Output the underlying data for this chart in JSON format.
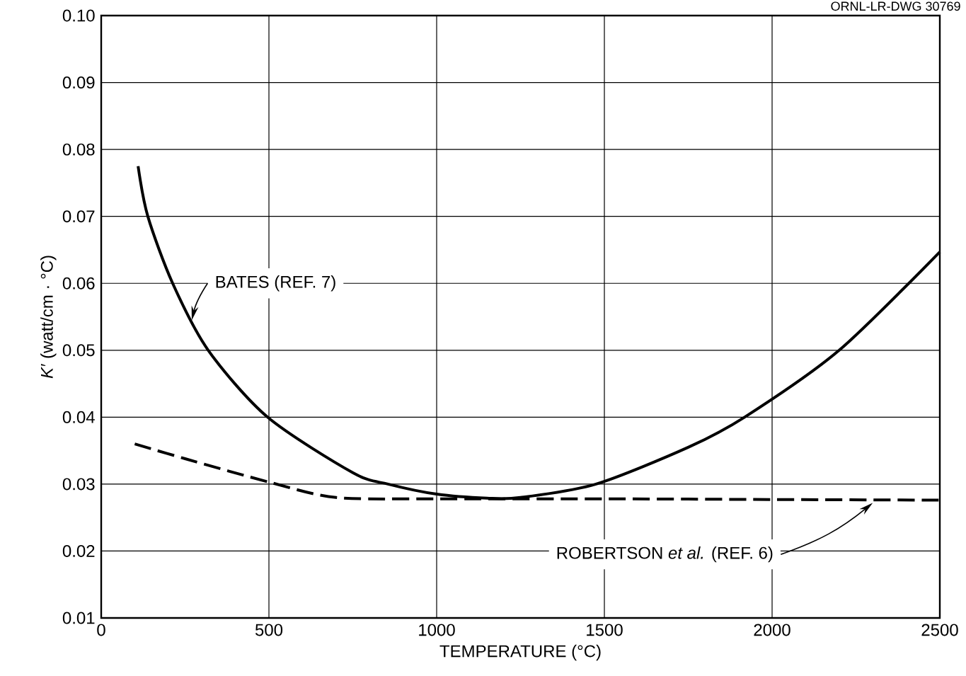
{
  "chart_data": {
    "type": "line",
    "xlabel": "TEMPERATURE (°C)",
    "ylabel": "*K*′ (watt/cm · °C)",
    "annotations": [
      "ORNL-LR-DWG 30769"
    ],
    "x": [
      110,
      139,
      213,
      319,
      496,
      750,
      855,
      1000,
      1150,
      1250,
      1475,
      1750,
      1918,
      2200,
      2500
    ],
    "xlim": [
      0,
      2500
    ],
    "xticks": [
      0,
      500,
      1000,
      1500,
      2000,
      2500
    ],
    "ylim": [
      0.01,
      0.1
    ],
    "yticks": [
      0.01,
      0.02,
      0.03,
      0.04,
      0.05,
      0.06,
      0.07,
      0.08,
      0.09,
      {
        "value": 0.1,
        "label": "0.10"
      }
    ],
    "grid": true,
    "marker": "none",
    "series": [
      {
        "name": "BATES (REF. 7)",
        "color": "#000000",
        "line_style": "solid",
        "values": [
          0.0775,
          0.07,
          0.06,
          0.05,
          0.04,
          0.0317,
          0.03,
          0.0285,
          0.0279,
          0.028,
          0.03,
          0.0355,
          0.04,
          0.05,
          0.0647
        ]
      },
      {
        "name": "ROBERTSON *et al.* (REF. 6)",
        "color": "#000000",
        "line_style": "dashed",
        "x": [
          100,
          250,
          500,
          700,
          1000,
          1500,
          2000,
          2500
        ],
        "values": [
          0.036,
          0.0338,
          0.0303,
          0.028,
          0.0278,
          0.0278,
          0.0277,
          0.0276
        ]
      }
    ]
  }
}
